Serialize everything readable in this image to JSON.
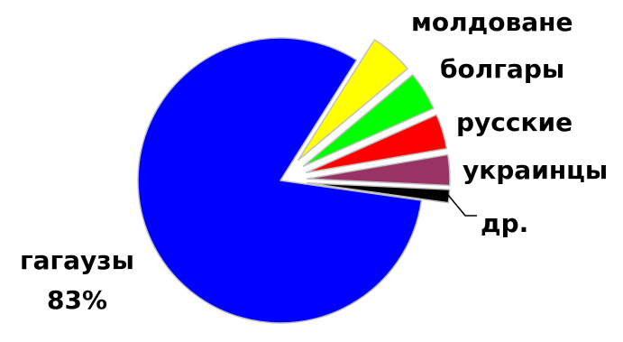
{
  "chart_data": {
    "type": "pie",
    "slices": [
      {
        "name": "гагаузы",
        "value": 83,
        "label": "83%",
        "color": "#0000ff"
      },
      {
        "name": "молдоване",
        "value": 5,
        "color": "#ffff00"
      },
      {
        "name": "болгары",
        "value": 4.5,
        "color": "#00ff00"
      },
      {
        "name": "русские",
        "value": 4,
        "color": "#ff0000"
      },
      {
        "name": "украинцы",
        "value": 3.5,
        "color": "#993366"
      },
      {
        "name": "др.",
        "value": 1.5,
        "color": "#000000"
      }
    ]
  }
}
